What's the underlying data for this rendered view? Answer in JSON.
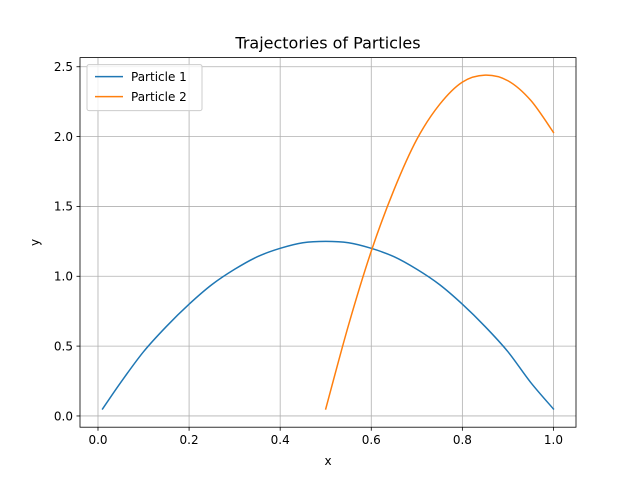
{
  "chart_data": {
    "type": "line",
    "title": "Trajectories of Particles",
    "xlabel": "x",
    "ylabel": "y",
    "xlim": [
      -0.0395,
      1.0495
    ],
    "ylim": [
      -0.0805,
      2.5655
    ],
    "xticks": [
      0.0,
      0.2,
      0.4,
      0.6,
      0.8,
      1.0
    ],
    "xtick_labels": [
      "0.0",
      "0.2",
      "0.4",
      "0.6",
      "0.8",
      "1.0"
    ],
    "yticks": [
      0.0,
      0.5,
      1.0,
      1.5,
      2.0,
      2.5
    ],
    "ytick_labels": [
      "0.0",
      "0.5",
      "1.0",
      "1.5",
      "2.0",
      "2.5"
    ],
    "grid": true,
    "legend_position": "top-left",
    "series": [
      {
        "name": "Particle 1",
        "color": "#1f77b4",
        "x": [
          0.01,
          0.05,
          0.1,
          0.15,
          0.2,
          0.25,
          0.3,
          0.35,
          0.4,
          0.45,
          0.5,
          0.55,
          0.6,
          0.65,
          0.7,
          0.75,
          0.8,
          0.85,
          0.9,
          0.95,
          1.0
        ],
        "y": [
          0.05,
          0.24,
          0.46,
          0.64,
          0.8,
          0.94,
          1.05,
          1.14,
          1.2,
          1.24,
          1.25,
          1.24,
          1.2,
          1.14,
          1.05,
          0.94,
          0.8,
          0.64,
          0.46,
          0.24,
          0.05
        ]
      },
      {
        "name": "Particle 2",
        "color": "#ff7f0e",
        "x": [
          0.5,
          0.55,
          0.6,
          0.65,
          0.7,
          0.75,
          0.8,
          0.85,
          0.9,
          0.95,
          1.0
        ],
        "y": [
          0.05,
          0.65,
          1.18,
          1.62,
          1.98,
          2.23,
          2.39,
          2.44,
          2.4,
          2.26,
          2.03
        ]
      }
    ]
  }
}
